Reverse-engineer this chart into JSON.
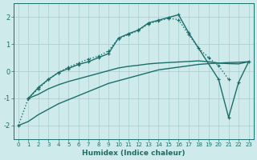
{
  "background_color": "#ceeaea",
  "grid_color": "#a8cccc",
  "line_color": "#1a6e6a",
  "xlabel": "Humidex (Indice chaleur)",
  "xlim": [
    -0.5,
    23.5
  ],
  "ylim": [
    -2.5,
    2.5
  ],
  "yticks": [
    -2,
    -1,
    0,
    1,
    2
  ],
  "xticks": [
    0,
    1,
    2,
    3,
    4,
    5,
    6,
    7,
    8,
    9,
    10,
    11,
    12,
    13,
    14,
    15,
    16,
    17,
    18,
    19,
    20,
    21,
    22,
    23
  ],
  "series": [
    {
      "x": [
        0,
        1,
        2,
        3,
        4,
        5,
        6,
        7,
        8,
        9,
        10,
        11,
        12,
        13,
        14,
        15,
        16,
        17,
        18,
        19,
        20,
        21,
        22,
        23
      ],
      "y": [
        -2.0,
        -1.85,
        -1.6,
        -1.4,
        -1.2,
        -1.05,
        -0.9,
        -0.75,
        -0.6,
        -0.45,
        -0.35,
        -0.25,
        -0.15,
        -0.05,
        0.05,
        0.1,
        0.15,
        0.2,
        0.25,
        0.28,
        0.3,
        0.32,
        0.33,
        0.35
      ],
      "marker": false,
      "linestyle": "-",
      "linewidth": 1.0
    },
    {
      "x": [
        1,
        2,
        3,
        4,
        5,
        6,
        7,
        8,
        9,
        10,
        11,
        12,
        13,
        14,
        15,
        16,
        17,
        18,
        19,
        20,
        21,
        22,
        23
      ],
      "y": [
        -1.0,
        -0.85,
        -0.65,
        -0.5,
        -0.38,
        -0.28,
        -0.18,
        -0.08,
        0.02,
        0.12,
        0.18,
        0.22,
        0.27,
        0.3,
        0.32,
        0.34,
        0.36,
        0.38,
        0.35,
        0.3,
        0.28,
        0.27,
        0.35
      ],
      "marker": false,
      "linestyle": "-",
      "linewidth": 1.0
    },
    {
      "x": [
        0,
        1,
        2,
        3,
        4,
        5,
        6,
        7,
        8,
        9,
        10,
        11,
        12,
        13,
        14,
        15,
        16,
        17,
        18,
        19,
        20,
        21
      ],
      "y": [
        -2.0,
        -1.0,
        -0.65,
        -0.3,
        -0.05,
        0.15,
        0.3,
        0.45,
        0.55,
        0.75,
        1.2,
        1.35,
        1.5,
        1.75,
        1.85,
        1.95,
        1.9,
        1.35,
        0.85,
        0.5,
        0.2,
        -0.3
      ],
      "marker": true,
      "linestyle": "dotted",
      "linewidth": 1.0
    },
    {
      "x": [
        1,
        2,
        3,
        4,
        5,
        6,
        7,
        8,
        9,
        10,
        11,
        12,
        13,
        14,
        15,
        16,
        17,
        20,
        21,
        22,
        23
      ],
      "y": [
        -1.0,
        -0.6,
        -0.3,
        -0.05,
        0.1,
        0.25,
        0.35,
        0.5,
        0.65,
        1.22,
        1.38,
        1.52,
        1.78,
        1.88,
        1.98,
        2.08,
        1.42,
        -0.3,
        -1.7,
        -0.4,
        0.35
      ],
      "marker": true,
      "linestyle": "-",
      "linewidth": 1.0
    }
  ]
}
